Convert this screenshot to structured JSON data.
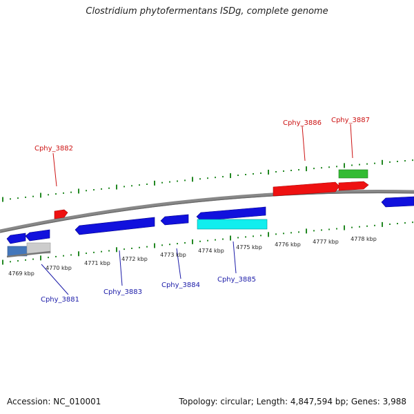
{
  "title": "Clostridium phytofermentans ISDg, complete genome",
  "footer": {
    "accession": "Accession: NC_010001",
    "topology": "Topology: circular; Length: 4,847,594 bp; Genes: 3,988"
  },
  "colors": {
    "forward_gene": "#ee1111",
    "reverse_gene": "#1111dd",
    "rna_green": "#33bb33",
    "rna_cyan": "#11eeee",
    "tick_green": "#228822",
    "backbone": "#888888",
    "label_forward": "#cc1111",
    "label_reverse": "#1a1aa8"
  },
  "scale_labels": [
    "4769 kbp",
    "4770 kbp",
    "4771 kbp",
    "4772 kbp",
    "4773 kbp",
    "4774 kbp",
    "4775 kbp",
    "4776 kbp",
    "4777 kbp",
    "4778 kbp"
  ],
  "gene_labels": {
    "forward": [
      "Cphy_3882",
      "Cphy_3886",
      "Cphy_3887"
    ],
    "reverse": [
      "Cphy_3881",
      "Cphy_3883",
      "Cphy_3884",
      "Cphy_3885"
    ]
  }
}
